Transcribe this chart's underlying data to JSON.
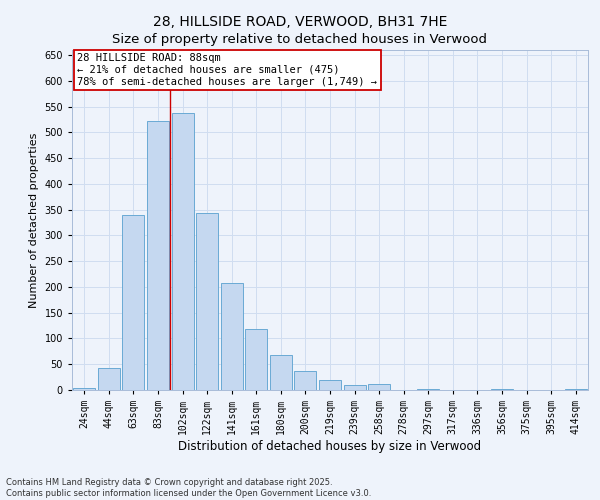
{
  "title": "28, HILLSIDE ROAD, VERWOOD, BH31 7HE",
  "subtitle": "Size of property relative to detached houses in Verwood",
  "xlabel": "Distribution of detached houses by size in Verwood",
  "ylabel": "Number of detached properties",
  "categories": [
    "24sqm",
    "44sqm",
    "63sqm",
    "83sqm",
    "102sqm",
    "122sqm",
    "141sqm",
    "161sqm",
    "180sqm",
    "200sqm",
    "219sqm",
    "239sqm",
    "258sqm",
    "278sqm",
    "297sqm",
    "317sqm",
    "336sqm",
    "356sqm",
    "375sqm",
    "395sqm",
    "414sqm"
  ],
  "values": [
    3,
    42,
    340,
    522,
    538,
    344,
    207,
    118,
    68,
    37,
    20,
    9,
    12,
    0,
    2,
    0,
    0,
    1,
    0,
    0,
    2
  ],
  "bar_color": "#c5d8f0",
  "bar_edge_color": "#6aaad4",
  "grid_color": "#d0ddf0",
  "background_color": "#eef3fb",
  "vline_color": "#cc0000",
  "vline_x_index": 3.5,
  "annotation_line1": "28 HILLSIDE ROAD: 88sqm",
  "annotation_line2": "← 21% of detached houses are smaller (475)",
  "annotation_line3": "78% of semi-detached houses are larger (1,749) →",
  "annotation_box_color": "white",
  "annotation_box_edge": "#cc0000",
  "ylim": [
    0,
    660
  ],
  "yticks": [
    0,
    50,
    100,
    150,
    200,
    250,
    300,
    350,
    400,
    450,
    500,
    550,
    600,
    650
  ],
  "footnote": "Contains HM Land Registry data © Crown copyright and database right 2025.\nContains public sector information licensed under the Open Government Licence v3.0.",
  "title_fontsize": 10,
  "subtitle_fontsize": 9.5,
  "xlabel_fontsize": 8.5,
  "ylabel_fontsize": 8,
  "tick_fontsize": 7,
  "annotation_fontsize": 7.5,
  "footnote_fontsize": 6
}
